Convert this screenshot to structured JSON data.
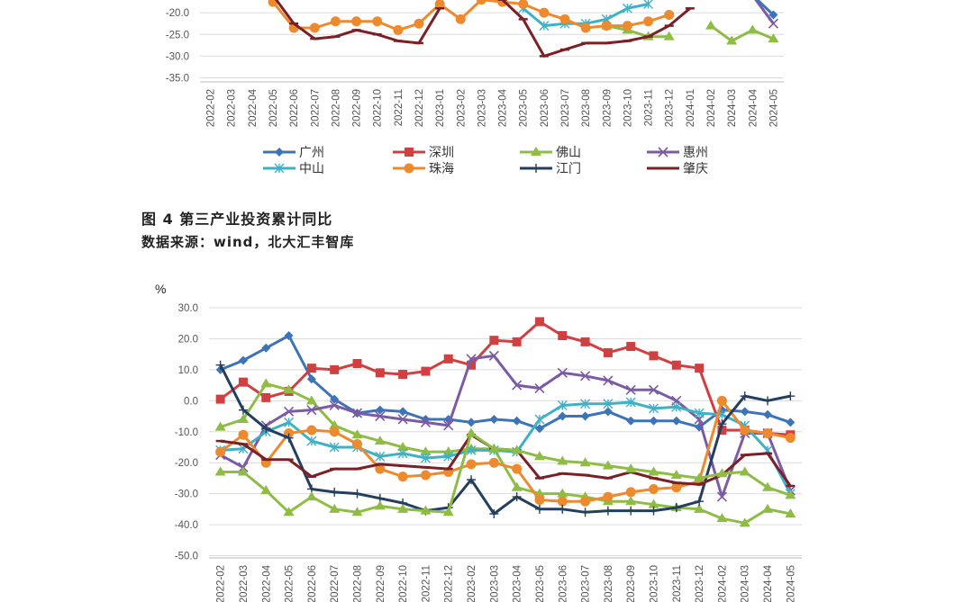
{
  "figure_caption": {
    "title": "图 4   第三产业投资累计同比",
    "source": "数据来源：wind，北大汇丰智库"
  },
  "chart_data": [
    {
      "type": "line",
      "title": "",
      "ylabel": "",
      "ylim": [
        -35,
        -15
      ],
      "yticks": [
        "-20.0",
        "-25.0",
        "-30.0",
        "-35.0"
      ],
      "x": [
        "2022-02",
        "2022-03",
        "2022-04",
        "2022-05",
        "2022-06",
        "2022-07",
        "2022-08",
        "2022-09",
        "2022-10",
        "2022-11",
        "2022-12",
        "2023-01",
        "2023-02",
        "2023-03",
        "2023-04",
        "2023-05",
        "2023-06",
        "2023-07",
        "2023-08",
        "2023-09",
        "2023-10",
        "2023-11",
        "2023-12",
        "2024-01",
        "2024-02",
        "2024-03",
        "2024-04",
        "2024-05"
      ],
      "legend": [
        "广州",
        "深圳",
        "佛山",
        "惠州",
        "中山",
        "珠海",
        "江门",
        "肇庆"
      ],
      "series": [
        {
          "name": "佛山",
          "color": "#8fbc45",
          "marker": "triangle",
          "values": [
            null,
            null,
            null,
            null,
            null,
            null,
            null,
            null,
            null,
            null,
            null,
            null,
            null,
            null,
            null,
            null,
            null,
            null,
            null,
            -23,
            -24,
            -25.5,
            -25.5,
            null,
            -23,
            -26.5,
            -24,
            -26
          ]
        },
        {
          "name": "惠州",
          "color": "#7b5aa6",
          "marker": "x",
          "values": [
            null,
            null,
            null,
            null,
            null,
            null,
            null,
            null,
            null,
            null,
            null,
            null,
            null,
            null,
            null,
            null,
            null,
            null,
            null,
            null,
            null,
            null,
            null,
            null,
            null,
            null,
            -16,
            -22.5
          ]
        },
        {
          "name": "广州",
          "color": "#3d74b8",
          "marker": "diamond",
          "values": [
            null,
            null,
            null,
            null,
            null,
            null,
            null,
            null,
            null,
            null,
            null,
            null,
            null,
            null,
            null,
            null,
            null,
            null,
            null,
            null,
            null,
            null,
            null,
            null,
            null,
            null,
            -16,
            -20.5
          ]
        },
        {
          "name": "中山",
          "color": "#3fb1c7",
          "marker": "asterisk",
          "values": [
            null,
            null,
            null,
            null,
            null,
            null,
            null,
            null,
            null,
            null,
            null,
            null,
            null,
            null,
            null,
            -19,
            -23,
            -22.5,
            -22.5,
            -21.5,
            -19,
            -18,
            null,
            null,
            null,
            null,
            null,
            null
          ]
        },
        {
          "name": "珠海",
          "color": "#ee8a2e",
          "marker": "circle",
          "values": [
            null,
            null,
            null,
            -17.5,
            -23.5,
            -23.5,
            -22,
            -22,
            -22,
            -24,
            -22.5,
            -18,
            -21.5,
            -17,
            -17.5,
            -18,
            -20,
            -21.5,
            -23.5,
            -23,
            -23,
            -22,
            -20.5,
            null,
            null,
            null,
            null,
            null
          ]
        },
        {
          "name": "肇庆",
          "color": "#7b2026",
          "marker": "dash",
          "values": [
            null,
            null,
            null,
            -16,
            -22.5,
            -26,
            -25.5,
            -24,
            -25,
            -26.5,
            -27,
            -19,
            null,
            null,
            -17,
            -21.5,
            -30,
            -28.5,
            -27,
            -27,
            -26.5,
            -25.5,
            -23,
            -19,
            null,
            null,
            null,
            null
          ]
        }
      ]
    },
    {
      "type": "line",
      "title": "",
      "ylabel": "%",
      "ylim": [
        -50,
        30
      ],
      "yticks": [
        "30.0",
        "20.0",
        "10.0",
        "0.0",
        "-10.0",
        "-20.0",
        "-30.0",
        "-40.0",
        "-50.0"
      ],
      "x": [
        "2022-02",
        "2022-03",
        "2022-04",
        "2022-05",
        "2022-06",
        "2022-07",
        "2022-08",
        "2022-09",
        "2022-10",
        "2022-11",
        "2022-12",
        "2023-02",
        "2023-03",
        "2023-04",
        "2023-05",
        "2023-06",
        "2023-07",
        "2023-08",
        "2023-09",
        "2023-10",
        "2023-11",
        "2023-12",
        "2024-02",
        "2024-03",
        "2024-04",
        "2024-05"
      ],
      "series": [
        {
          "name": "广州",
          "color": "#3d74b8",
          "marker": "diamond",
          "values": [
            10,
            13,
            17,
            21,
            7,
            0.5,
            -4,
            -3,
            -3.5,
            -6,
            -6,
            -7,
            -6,
            -6.5,
            -9,
            -5,
            -5,
            -3.5,
            -6.5,
            -6.5,
            -6.5,
            -8.5,
            -3,
            -3.5,
            -4.5,
            -7
          ]
        },
        {
          "name": "深圳",
          "color": "#d04040",
          "marker": "square",
          "values": [
            0.5,
            6,
            1,
            3,
            10.5,
            10,
            12,
            9,
            8.5,
            9.5,
            13.5,
            11.5,
            19.5,
            19,
            25.5,
            21,
            19,
            15.5,
            17.5,
            14.5,
            11.5,
            10.5,
            -9.5,
            -9.5,
            -10.5,
            -11
          ]
        },
        {
          "name": "佛山",
          "color": "#8fbc45",
          "marker": "triangle",
          "values": [
            -8.5,
            -6,
            5.5,
            3.5,
            0,
            -8,
            -11,
            -13,
            -15,
            -16.5,
            -16.5,
            -15.5,
            -15.5,
            -28,
            -30,
            -30,
            -31,
            -32.5,
            -32.5,
            -33.5,
            -34.5,
            -35,
            -38,
            -39.5,
            -35,
            -36.5
          ]
        },
        {
          "name": "惠州",
          "color": "#7b5aa6",
          "marker": "x",
          "values": [
            -17.5,
            -21.5,
            -8,
            -3.5,
            -3,
            -1.5,
            -4,
            -5,
            -6,
            -7,
            -8,
            13.5,
            14.5,
            5,
            4,
            9,
            8,
            6.5,
            3.5,
            3.5,
            0,
            -6,
            -31,
            -10.5,
            -10.5,
            -29
          ]
        },
        {
          "name": "中山",
          "color": "#3fb1c7",
          "marker": "asterisk",
          "values": [
            -16,
            -15.5,
            -10,
            -7,
            -13,
            -15,
            -15,
            -18,
            -17,
            -18.5,
            -18,
            -16,
            -16,
            -16.5,
            -6,
            -1.5,
            -1,
            -1,
            -0.5,
            -2.5,
            -2,
            -4,
            -4.5,
            -8,
            -16,
            -30
          ]
        },
        {
          "name": "珠海",
          "color": "#ee8a2e",
          "marker": "circle",
          "values": [
            -16.5,
            -11,
            -20,
            -10.5,
            -9.5,
            -10,
            -14,
            -22,
            -24.5,
            -24,
            -23,
            -20.5,
            -20,
            -22,
            -32,
            -32.5,
            -32.5,
            -31,
            -29.5,
            -28.5,
            -28,
            -26,
            0,
            -9.5,
            -10.5,
            -12
          ]
        },
        {
          "name": "江门",
          "color": "#243f5e",
          "marker": "plus",
          "values": [
            11.5,
            -3,
            -9,
            -12,
            -28.5,
            -29.5,
            -30,
            -31.5,
            -33,
            -35.5,
            -34.5,
            -25.5,
            -36.5,
            -31,
            -35,
            -35,
            -36,
            -35.5,
            -35.5,
            -35.5,
            -34.5,
            -32.5,
            -7.5,
            1.5,
            0,
            1.5
          ]
        },
        {
          "name": "肇庆",
          "color": "#7b2026",
          "marker": "dash",
          "values": [
            -13,
            -14,
            -19,
            -19,
            -24.5,
            -22,
            -22,
            -20.5,
            -21,
            -21.5,
            -22,
            -11,
            -15.5,
            -16,
            -25,
            -23.5,
            -24,
            -25,
            -23,
            -25,
            -26.5,
            -27,
            -24,
            -17.5,
            -17,
            -27.5
          ]
        },
        {
          "name": "佛山-b",
          "color": "#8fbc45",
          "marker": "triangle",
          "values": [
            -23,
            -23,
            -29,
            -36,
            -31,
            -35,
            -36,
            -34,
            -35,
            -35.5,
            -36,
            -10.5,
            -15.5,
            -16,
            -18,
            -19.5,
            -20,
            -21,
            -22,
            -23,
            -24,
            -25,
            -23.5,
            -23,
            -28,
            -30.5
          ]
        }
      ]
    }
  ]
}
